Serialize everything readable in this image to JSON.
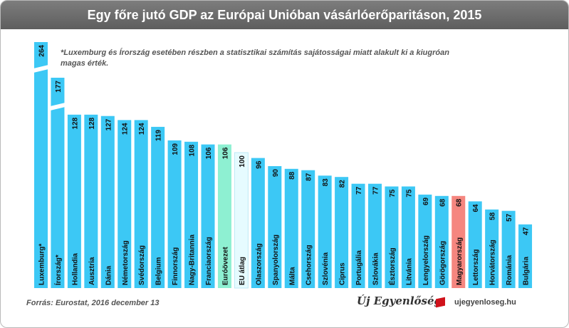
{
  "title": "Egy főre jutó GDP az Európai Unióban vásárlóerőparitáson, 2015",
  "note": "*Luxemburg és Írország esetében részben a statisztikai számítás sajátosságai miatt alakult ki a kiugróan magas érték.",
  "source": "Forrás: Eurostat, 2016 december 13",
  "logo_text": "Új Egyenlőség",
  "website": "ujegyenloseg.hu",
  "colors": {
    "default_bar": "#3cc8f5",
    "eurozone_bar": "#8ef0d2",
    "eu_average_bar": "#e6fbff",
    "hungary_bar": "#f5867f",
    "header": "#666666"
  },
  "chart_data": {
    "type": "bar",
    "title": "Egy főre jutó GDP az Európai Unióban vásárlóerőparitáson, 2015",
    "xlabel": "",
    "ylabel": "",
    "axis_break": true,
    "legend": "none",
    "grid": false,
    "categories": [
      "Luxemburg*",
      "Írország*",
      "Hollandia",
      "Ausztria",
      "Dánia",
      "Németország",
      "Svédország",
      "Belgium",
      "Finnország",
      "Nagy-Britannia",
      "Franciaország",
      "Euróövezet",
      "EU átlag",
      "Olaszország",
      "Spanyolország",
      "Málta",
      "Csehország",
      "Szlovénia",
      "Ciprus",
      "Portugália",
      "Szlovákia",
      "Észtország",
      "Litvánia",
      "Lengyelország",
      "Görögország",
      "Magyarország",
      "Lettország",
      "Horvátország",
      "Románia",
      "Bulgária"
    ],
    "values": [
      264,
      177,
      128,
      128,
      127,
      124,
      124,
      119,
      109,
      108,
      106,
      106,
      100,
      96,
      90,
      88,
      87,
      83,
      82,
      77,
      77,
      75,
      75,
      69,
      68,
      68,
      64,
      58,
      57,
      47
    ],
    "highlight": {
      "Euróövezet": "eurozone_bar",
      "EU átlag": "eu_average_bar",
      "Magyarország": "hungary_bar"
    }
  }
}
